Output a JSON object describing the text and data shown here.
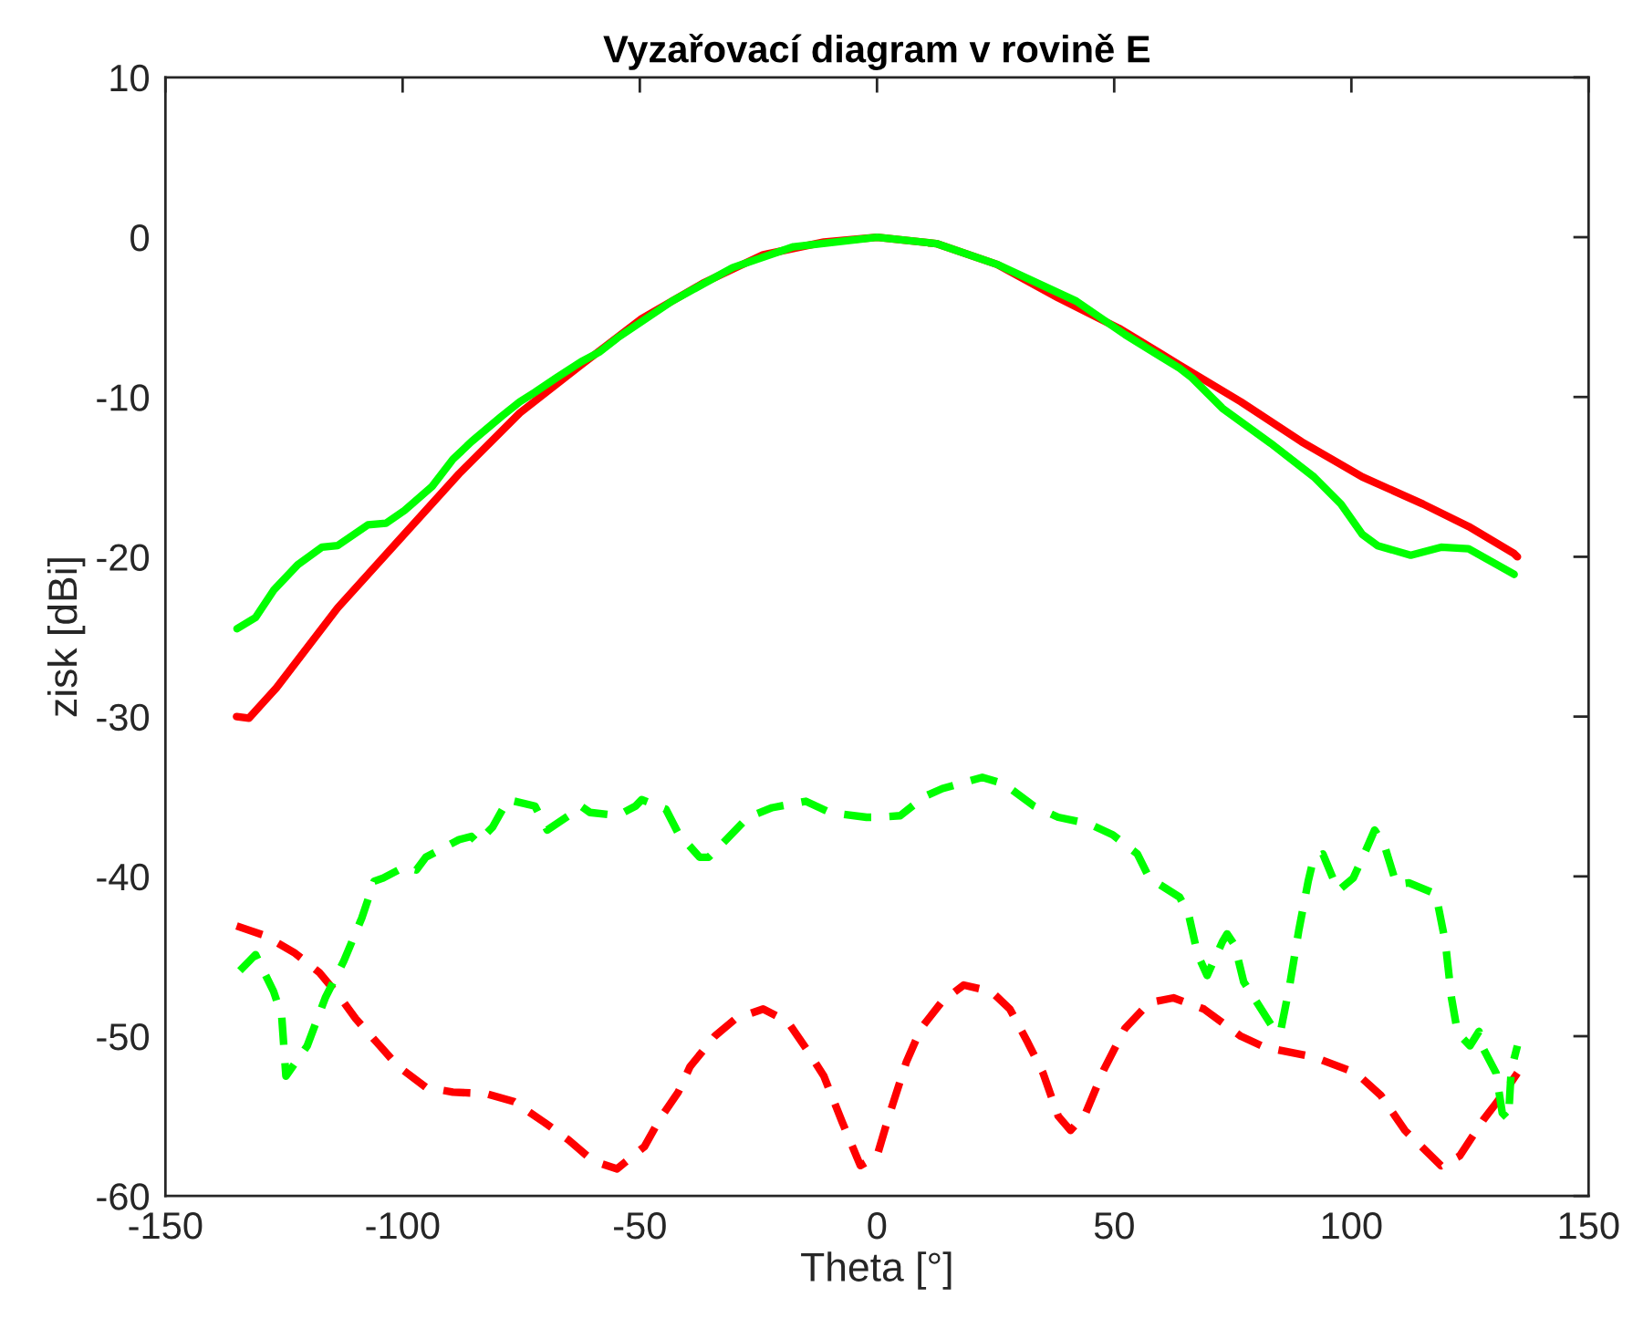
{
  "chart_data": {
    "type": "line",
    "title": "Vyzařovací diagram v rovině E",
    "xlabel": "Theta [°]",
    "ylabel": "zisk [dBi]",
    "xlim": [
      -150,
      150
    ],
    "xticks": [
      -150,
      -100,
      -50,
      0,
      50,
      100,
      150
    ],
    "ylim": [
      -60,
      10
    ],
    "yticks": [
      -60,
      -50,
      -40,
      -30,
      -20,
      -10,
      0,
      10
    ],
    "grid": false,
    "series": [
      {
        "color": "#ff0000",
        "line_style": "solid",
        "x": [
          -135,
          -132.4,
          -126.6,
          -113.7,
          -100.9,
          -88.1,
          -75.3,
          -62.4,
          -49.6,
          -36.8,
          -24,
          -11.2,
          0,
          12.5,
          25.3,
          38.2,
          51,
          63.8,
          76.7,
          89.5,
          102.3,
          115.1,
          124.7,
          134.3,
          135
        ],
        "values": [
          -30,
          -30.1,
          -28.2,
          -23.2,
          -19.0,
          -14.8,
          -11.0,
          -8.0,
          -5.1,
          -2.9,
          -1.1,
          -0.3,
          0,
          -0.4,
          -1.7,
          -3.8,
          -5.7,
          -8.0,
          -10.3,
          -12.8,
          -15.0,
          -16.7,
          -18.1,
          -19.8,
          -20
        ]
      },
      {
        "color": "#00ff00",
        "line_style": "solid",
        "x": [
          -134.9,
          -131,
          -127.2,
          -122.1,
          -117,
          -113.7,
          -107.3,
          -103.5,
          -99.6,
          -93.8,
          -89.4,
          -85.5,
          -79.1,
          -75.3,
          -72.1,
          -67.6,
          -62.4,
          -58.6,
          -54.7,
          -43.2,
          -30.4,
          -17.6,
          0,
          12.5,
          25.3,
          42,
          52.3,
          63.8,
          66.4,
          72.8,
          77.9,
          83,
          92.1,
          97.8,
          102.3,
          105.5,
          112.5,
          118.9,
          124.7,
          134.3
        ],
        "values": [
          -24.5,
          -23.8,
          -22.1,
          -20.5,
          -19.4,
          -19.3,
          -18.0,
          -17.9,
          -17.1,
          -15.6,
          -13.9,
          -12.8,
          -11.2,
          -10.3,
          -9.7,
          -8.8,
          -7.8,
          -7.2,
          -6.3,
          -4.0,
          -1.9,
          -0.6,
          0,
          -0.4,
          -1.7,
          -4.0,
          -6.1,
          -8.2,
          -8.8,
          -10.7,
          -11.8,
          -12.9,
          -15.0,
          -16.7,
          -18.6,
          -19.3,
          -19.9,
          -19.4,
          -19.5,
          -21.1
        ]
      },
      {
        "color": "#ff0000",
        "line_style": "dashed",
        "x": [
          -135,
          -129.1,
          -122.7,
          -117.6,
          -113.1,
          -109.9,
          -104.8,
          -100.9,
          -95.1,
          -89.4,
          -82.3,
          -76.5,
          -70.1,
          -65,
          -59.9,
          -54.8,
          -49,
          -45.8,
          -41.9,
          -39.4,
          -34.2,
          -29.8,
          -24,
          -18.8,
          -14.4,
          -11.2,
          -7.3,
          -3.5,
          0,
          2.3,
          6.2,
          9.3,
          13.8,
          18.3,
          24.1,
          28,
          31.8,
          35,
          38.2,
          40.8,
          44,
          47.8,
          52.3,
          57.4,
          62.5,
          68.9,
          76.7,
          81.8,
          92.1,
          101,
          106.2,
          111.3,
          118.9,
          122.8,
          127.9,
          131.8,
          135
        ],
        "values": [
          -43.1,
          -43.7,
          -44.8,
          -46.0,
          -47.6,
          -48.9,
          -50.6,
          -51.9,
          -53.2,
          -53.5,
          -53.6,
          -54.1,
          -55.4,
          -56.5,
          -57.8,
          -58.3,
          -56.9,
          -55.2,
          -53.5,
          -51.9,
          -50.0,
          -48.9,
          -48.3,
          -49.1,
          -51.0,
          -52.5,
          -55.4,
          -58.1,
          -57.5,
          -55.2,
          -51.6,
          -49.5,
          -47.8,
          -46.8,
          -47.2,
          -48.3,
          -50.4,
          -52.3,
          -55.0,
          -55.9,
          -54.8,
          -52.1,
          -49.5,
          -47.9,
          -47.6,
          -48.3,
          -50.0,
          -50.7,
          -51.3,
          -52.3,
          -53.7,
          -55.9,
          -58.1,
          -57.5,
          -55.2,
          -53.7,
          -52.3
        ]
      },
      {
        "color": "#00ff00",
        "line_style": "dashed",
        "x": [
          -134.3,
          -131,
          -127.2,
          -125.5,
          -124.6,
          -120.1,
          -116.3,
          -112.4,
          -108.6,
          -106,
          -104.1,
          -99.6,
          -97.1,
          -95.1,
          -88.1,
          -85.5,
          -84.2,
          -81,
          -77.8,
          -72.1,
          -69.5,
          -65,
          -62.4,
          -60.5,
          -54.7,
          -50.9,
          -49.6,
          -44.5,
          -41.9,
          -37.4,
          -35.5,
          -32.4,
          -27.2,
          -22.1,
          -15,
          -9.9,
          -2.2,
          0,
          4.9,
          10,
          13.8,
          22.2,
          26.7,
          33.1,
          38.2,
          44.6,
          49.7,
          54.9,
          57.4,
          63.8,
          65.7,
          67.6,
          69.6,
          72.8,
          73.8,
          75.4,
          77.3,
          79.9,
          83.1,
          85,
          87,
          88.9,
          90.9,
          92.1,
          94,
          97.2,
          100.4,
          103,
          104.9,
          106.9,
          109.5,
          112.1,
          117.8,
          119.8,
          121.1,
          122.4,
          125,
          126.9,
          127.5,
          130.5,
          131.8,
          133.1,
          133.7,
          135
        ],
        "values": [
          -45.9,
          -44.9,
          -47.2,
          -48.7,
          -52.5,
          -50.6,
          -47.6,
          -45.3,
          -42.6,
          -40.3,
          -40.1,
          -39.4,
          -39.6,
          -38.8,
          -37.7,
          -37.5,
          -37.9,
          -36.9,
          -35.2,
          -35.6,
          -37.1,
          -36.2,
          -35.6,
          -36.0,
          -36.2,
          -35.6,
          -35.2,
          -35.8,
          -37.3,
          -38.8,
          -38.8,
          -37.9,
          -36.3,
          -35.7,
          -35.3,
          -36.0,
          -36.3,
          -36.3,
          -36.2,
          -35.0,
          -34.5,
          -33.8,
          -34.2,
          -35.6,
          -36.3,
          -36.7,
          -37.4,
          -38.6,
          -40.1,
          -41.3,
          -42.4,
          -44.9,
          -46.2,
          -44.1,
          -43.6,
          -44.3,
          -46.6,
          -47.8,
          -49.3,
          -49.8,
          -46.8,
          -43.4,
          -40.3,
          -38.8,
          -38.6,
          -40.9,
          -40.1,
          -38.4,
          -37.1,
          -38.0,
          -40.5,
          -40.4,
          -41.1,
          -44.1,
          -47.6,
          -49.8,
          -50.6,
          -49.7,
          -50.6,
          -52.3,
          -54.8,
          -55.2,
          -52.1,
          -50.6
        ]
      }
    ]
  }
}
